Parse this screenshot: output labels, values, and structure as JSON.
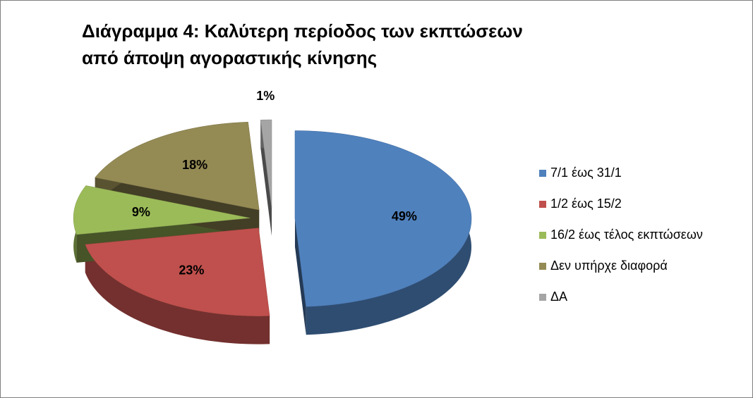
{
  "chart_data": {
    "type": "pie",
    "title": "Διάγραμμα 4: Καλύτερη περίοδος των εκπτώσεων από άποψη αγοραστικής κίνησης",
    "categories": [
      "7/1 έως 31/1",
      "1/2 έως 15/2",
      "16/2 έως τέλος εκπτώσεων",
      "Δεν υπήρχε διαφορά",
      "ΔΑ"
    ],
    "values": [
      49,
      23,
      9,
      18,
      1
    ],
    "value_labels": [
      "49%",
      "23%",
      "9%",
      "18%",
      "1%"
    ],
    "colors": [
      "#4f81bd",
      "#c0504d",
      "#9bbb59",
      "#948a54",
      "#a5a5a5"
    ],
    "legend": "right"
  }
}
